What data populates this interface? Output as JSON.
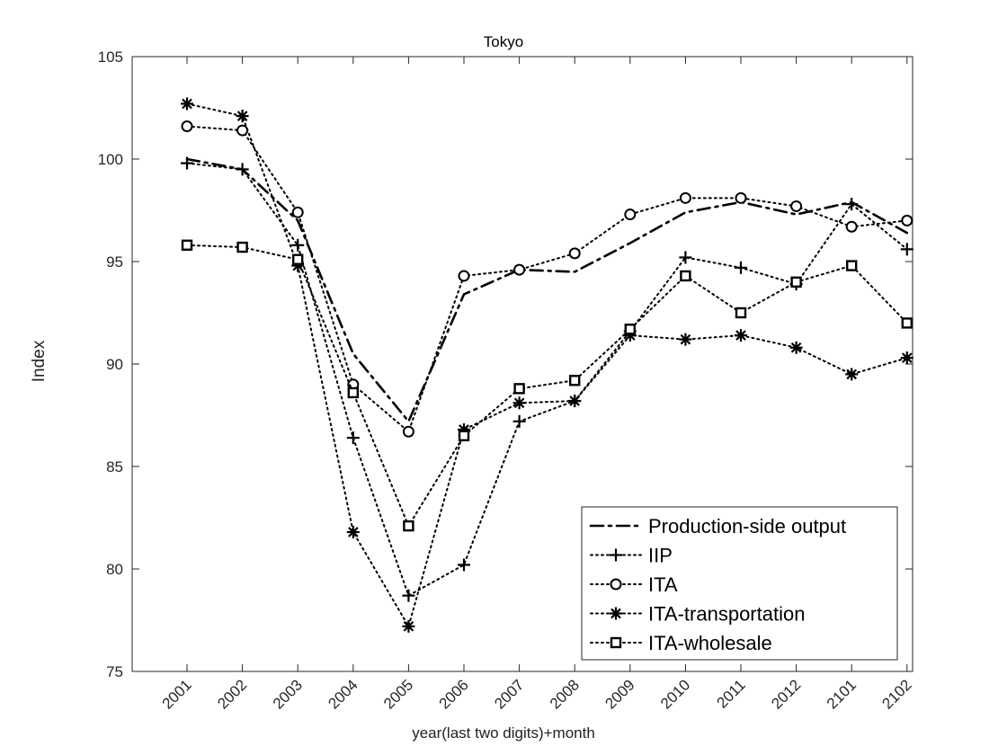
{
  "chart_data": {
    "type": "line",
    "title": "Tokyo",
    "xlabel": "year(last two digits)+month",
    "ylabel": "Index",
    "categories": [
      "2001",
      "2002",
      "2003",
      "2004",
      "2005",
      "2006",
      "2007",
      "2008",
      "2009",
      "2010",
      "2011",
      "2012",
      "2101",
      "2102"
    ],
    "ylim": [
      75,
      105
    ],
    "yticks": [
      75,
      80,
      85,
      90,
      95,
      100,
      105
    ],
    "grid": false,
    "legend_position": "bottom-right",
    "series": [
      {
        "name": "Production-side output",
        "line": "dashdot",
        "marker": "none",
        "values": [
          100.0,
          99.5,
          97.0,
          90.5,
          87.2,
          93.4,
          94.6,
          94.5,
          95.9,
          97.4,
          97.9,
          97.3,
          97.9,
          96.4
        ]
      },
      {
        "name": "IIP",
        "line": "dotted",
        "marker": "plus",
        "values": [
          99.8,
          99.5,
          95.8,
          86.4,
          78.7,
          80.2,
          87.2,
          88.2,
          91.6,
          95.2,
          94.7,
          93.9,
          97.8,
          95.6
        ]
      },
      {
        "name": "ITA",
        "line": "dotted",
        "marker": "circle",
        "values": [
          101.6,
          101.4,
          97.4,
          89.0,
          86.7,
          94.3,
          94.6,
          95.4,
          97.3,
          98.1,
          98.1,
          97.7,
          96.7,
          97.0
        ]
      },
      {
        "name": "ITA-transportation",
        "line": "dotted",
        "marker": "asterisk",
        "values": [
          102.7,
          102.1,
          94.8,
          81.8,
          77.2,
          86.8,
          88.1,
          88.2,
          91.4,
          91.2,
          91.4,
          90.8,
          89.5,
          90.3
        ]
      },
      {
        "name": "ITA-wholesale",
        "line": "dotted",
        "marker": "square",
        "values": [
          95.8,
          95.7,
          95.1,
          88.6,
          82.1,
          86.5,
          88.8,
          89.2,
          91.7,
          94.3,
          92.5,
          94.0,
          94.8,
          92.0
        ]
      }
    ]
  }
}
